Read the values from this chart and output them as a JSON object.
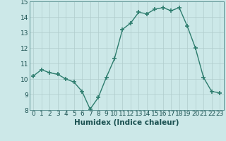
{
  "x": [
    0,
    1,
    2,
    3,
    4,
    5,
    6,
    7,
    8,
    9,
    10,
    11,
    12,
    13,
    14,
    15,
    16,
    17,
    18,
    19,
    20,
    21,
    22,
    23
  ],
  "y": [
    10.2,
    10.6,
    10.4,
    10.3,
    10.0,
    9.8,
    9.2,
    8.05,
    8.8,
    10.1,
    11.3,
    13.2,
    13.6,
    14.3,
    14.2,
    14.5,
    14.6,
    14.4,
    14.6,
    13.4,
    12.0,
    10.1,
    9.2,
    9.1
  ],
  "line_color": "#2e7d6e",
  "marker": "+",
  "marker_size": 5,
  "bg_color": "#cce8e8",
  "grid_color": "#b0cccc",
  "xlabel": "Humidex (Indice chaleur)",
  "ylim": [
    8,
    15
  ],
  "xlim": [
    -0.5,
    23.5
  ],
  "yticks": [
    8,
    9,
    10,
    11,
    12,
    13,
    14,
    15
  ],
  "xticks": [
    0,
    1,
    2,
    3,
    4,
    5,
    6,
    7,
    8,
    9,
    10,
    11,
    12,
    13,
    14,
    15,
    16,
    17,
    18,
    19,
    20,
    21,
    22,
    23
  ],
  "xlabel_fontsize": 7.5,
  "tick_fontsize": 6.5,
  "line_width": 1.0
}
